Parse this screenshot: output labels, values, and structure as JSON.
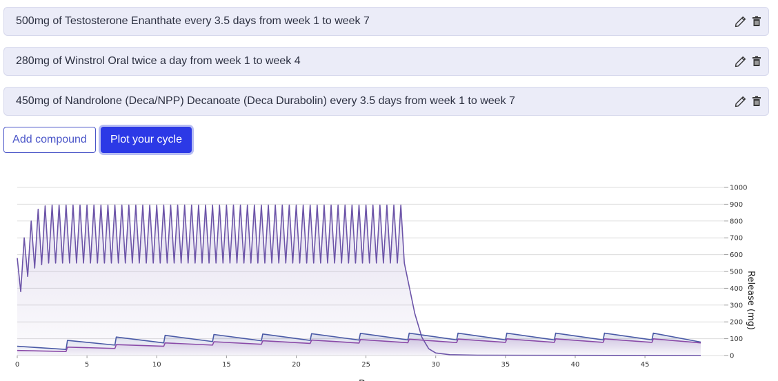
{
  "compounds": [
    {
      "text": "500mg of Testosterone Enanthate every 3.5 days from week 1 to week 7"
    },
    {
      "text": "280mg of Winstrol Oral twice a day from week 1 to week 4"
    },
    {
      "text": "450mg of Nandrolone (Deca/NPP) Decanoate (Deca Durabolin) every 3.5 days from week 1 to week 7"
    }
  ],
  "actions": {
    "edit_icon": "pencil-icon",
    "delete_icon": "trash-icon"
  },
  "buttons": {
    "add_label": "Add compound",
    "plot_label": "Plot your cycle"
  },
  "colors": {
    "row_bg": "#ebecf8",
    "primary": "#2c39e6",
    "series_winstrol": "#6c54a8",
    "series_test": "#4a5aa6",
    "series_deca": "#8a4aa8"
  },
  "chart_data": {
    "type": "area",
    "xlabel": "D",
    "ylabel": "Release (mg)",
    "xlim": [
      0,
      49
    ],
    "ylim": [
      0,
      1000
    ],
    "x_ticks": [
      0,
      5,
      10,
      15,
      20,
      25,
      30,
      35,
      40,
      45
    ],
    "y_ticks": [
      0,
      100,
      200,
      300,
      400,
      500,
      600,
      700,
      800,
      900,
      1000
    ],
    "grid": true,
    "series": [
      {
        "name": "",
        "points": [
          [
            0,
            580
          ],
          [
            0.25,
            380
          ],
          [
            0.5,
            700
          ],
          [
            0.75,
            470
          ],
          [
            1,
            800
          ],
          [
            1.25,
            520
          ],
          [
            1.5,
            870
          ],
          [
            1.75,
            540
          ],
          [
            2,
            890
          ],
          [
            2.25,
            550
          ],
          [
            2.5,
            895
          ],
          [
            3,
            550
          ],
          [
            3.5,
            895
          ],
          [
            27.5,
            895
          ],
          [
            27.75,
            550
          ],
          [
            28,
            450
          ],
          [
            28.5,
            250
          ],
          [
            29,
            110
          ],
          [
            29.5,
            40
          ],
          [
            30,
            15
          ],
          [
            31,
            5
          ],
          [
            33,
            2
          ],
          [
            49,
            0
          ]
        ],
        "oscillate": {
          "from": 2.5,
          "to": 27.5,
          "period": 0.5,
          "min": 550,
          "max": 895
        }
      },
      {
        "name": "",
        "points": [
          [
            0,
            55
          ],
          [
            3.5,
            36
          ],
          [
            3.6,
            90
          ],
          [
            7,
            62
          ],
          [
            7.1,
            110
          ],
          [
            10.5,
            75
          ],
          [
            10.6,
            120
          ],
          [
            14,
            83
          ],
          [
            14.1,
            125
          ],
          [
            17.5,
            88
          ],
          [
            17.6,
            128
          ],
          [
            21,
            90
          ],
          [
            21.1,
            130
          ],
          [
            24.5,
            92
          ],
          [
            24.6,
            132
          ],
          [
            28,
            93
          ],
          [
            28.1,
            133
          ],
          [
            31.5,
            93
          ],
          [
            31.6,
            133
          ],
          [
            35,
            93
          ],
          [
            35.1,
            133
          ],
          [
            38.5,
            93
          ],
          [
            38.6,
            133
          ],
          [
            42,
            93
          ],
          [
            42.1,
            133
          ],
          [
            45.5,
            93
          ],
          [
            45.6,
            133
          ],
          [
            49,
            80
          ]
        ]
      },
      {
        "name": "",
        "points": [
          [
            0,
            30
          ],
          [
            3.5,
            24
          ],
          [
            3.6,
            50
          ],
          [
            7,
            42
          ],
          [
            7.1,
            65
          ],
          [
            10.5,
            55
          ],
          [
            10.6,
            75
          ],
          [
            14,
            62
          ],
          [
            14.1,
            82
          ],
          [
            17.5,
            67
          ],
          [
            17.6,
            88
          ],
          [
            21,
            72
          ],
          [
            21.1,
            92
          ],
          [
            24.5,
            74
          ],
          [
            24.6,
            95
          ],
          [
            28,
            76
          ],
          [
            28.1,
            97
          ],
          [
            31.5,
            77
          ],
          [
            31.6,
            98
          ],
          [
            35,
            78
          ],
          [
            35.1,
            99
          ],
          [
            38.5,
            78
          ],
          [
            38.6,
            99
          ],
          [
            42,
            78
          ],
          [
            42.1,
            99
          ],
          [
            45.5,
            78
          ],
          [
            45.6,
            99
          ],
          [
            49,
            75
          ]
        ]
      }
    ]
  }
}
